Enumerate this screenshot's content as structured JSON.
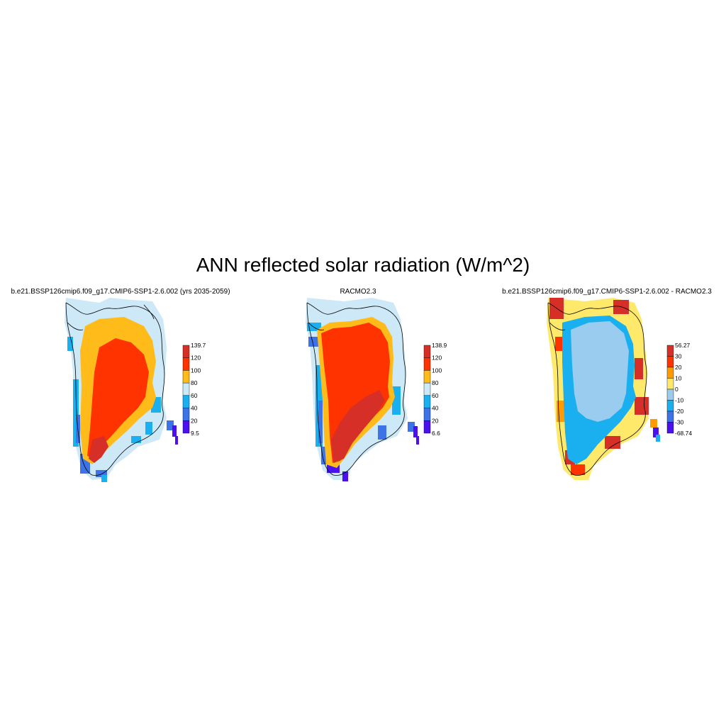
{
  "title": "ANN reflected solar radiation (W/m^2)",
  "colors": {
    "deep_red": "#d62f27",
    "red_orange": "#ff3300",
    "orange": "#ff9a00",
    "yellow_orange": "#ffbb1a",
    "pale_yellow": "#ffe96a",
    "pale_blue": "#cde8f6",
    "light_blue": "#99ccee",
    "sky_blue": "#1ab0f0",
    "mid_blue": "#3c73e6",
    "violet": "#4a10ee"
  },
  "panels": [
    {
      "title": "b.e21.BSSP126cmip6.f09_g17.CMIP6-SSP1-2.6.002 (yrs 2035-2059)",
      "colorbar": {
        "labels": [
          "139.7",
          "120",
          "100",
          "80",
          "60",
          "40",
          "20",
          "9.5"
        ],
        "colors": [
          "#d62f27",
          "#ff3300",
          "#ffbb1a",
          "#cde8f6",
          "#1ab0f0",
          "#3c73e6",
          "#4a10ee"
        ]
      }
    },
    {
      "title": "RACMO2.3",
      "colorbar": {
        "labels": [
          "138.9",
          "120",
          "100",
          "80",
          "60",
          "40",
          "20",
          "6.6"
        ],
        "colors": [
          "#d62f27",
          "#ff3300",
          "#ffbb1a",
          "#cde8f6",
          "#1ab0f0",
          "#3c73e6",
          "#4a10ee"
        ]
      }
    },
    {
      "title": "b.e21.BSSP126cmip6.f09_g17.CMIP6-SSP1-2.6.002 - RACMO2.3",
      "colorbar": {
        "labels": [
          "56.27",
          "30",
          "20",
          "10",
          "0",
          "-10",
          "-20",
          "-30",
          "-68.74"
        ],
        "colors": [
          "#d62f27",
          "#ff3300",
          "#ff9a00",
          "#ffe96a",
          "#99ccee",
          "#1ab0f0",
          "#3c73e6",
          "#4a10ee"
        ]
      }
    }
  ]
}
